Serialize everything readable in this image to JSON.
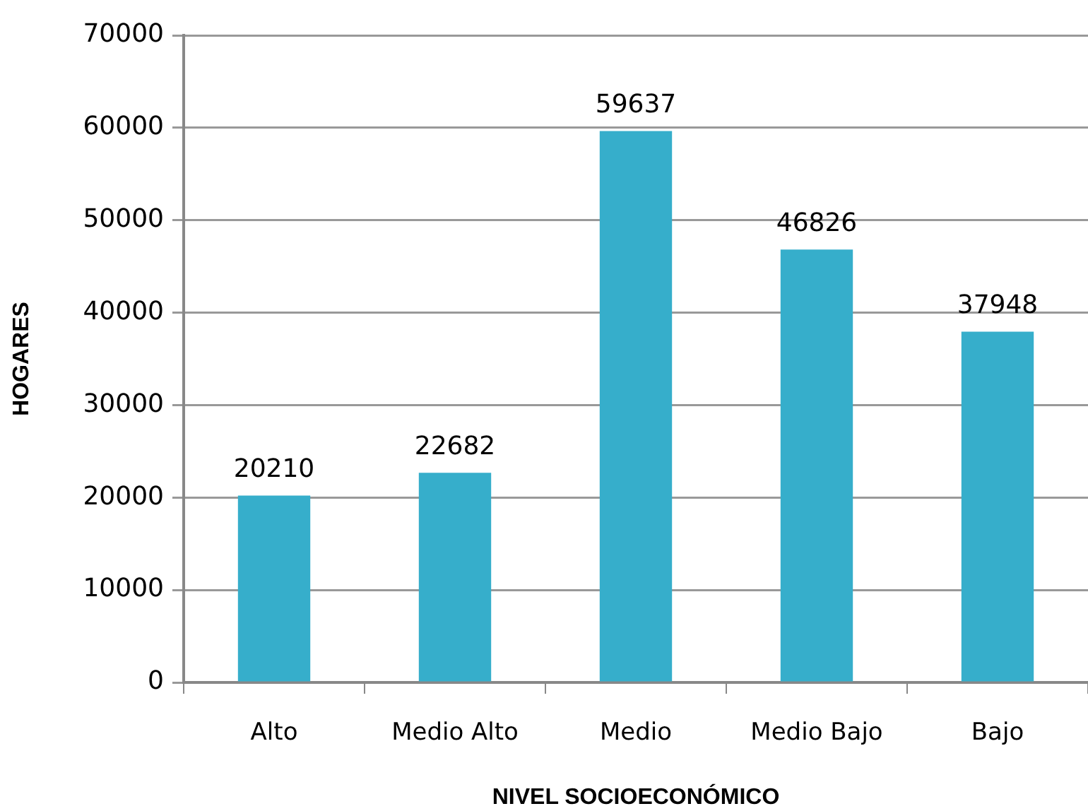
{
  "chart_data": {
    "type": "bar",
    "xlabel": "NIVEL SOCIOECONÓMICO",
    "ylabel": "HOGARES",
    "categories": [
      "Alto",
      "Medio Alto",
      "Medio",
      "Medio Bajo",
      "Bajo"
    ],
    "values": [
      20210,
      22682,
      59637,
      46826,
      37948
    ],
    "color": "#36aecb",
    "ylim": [
      0,
      70000
    ],
    "yticks": [
      0,
      10000,
      20000,
      30000,
      40000,
      50000,
      60000,
      70000
    ],
    "grid": "y",
    "data_labels": true
  }
}
